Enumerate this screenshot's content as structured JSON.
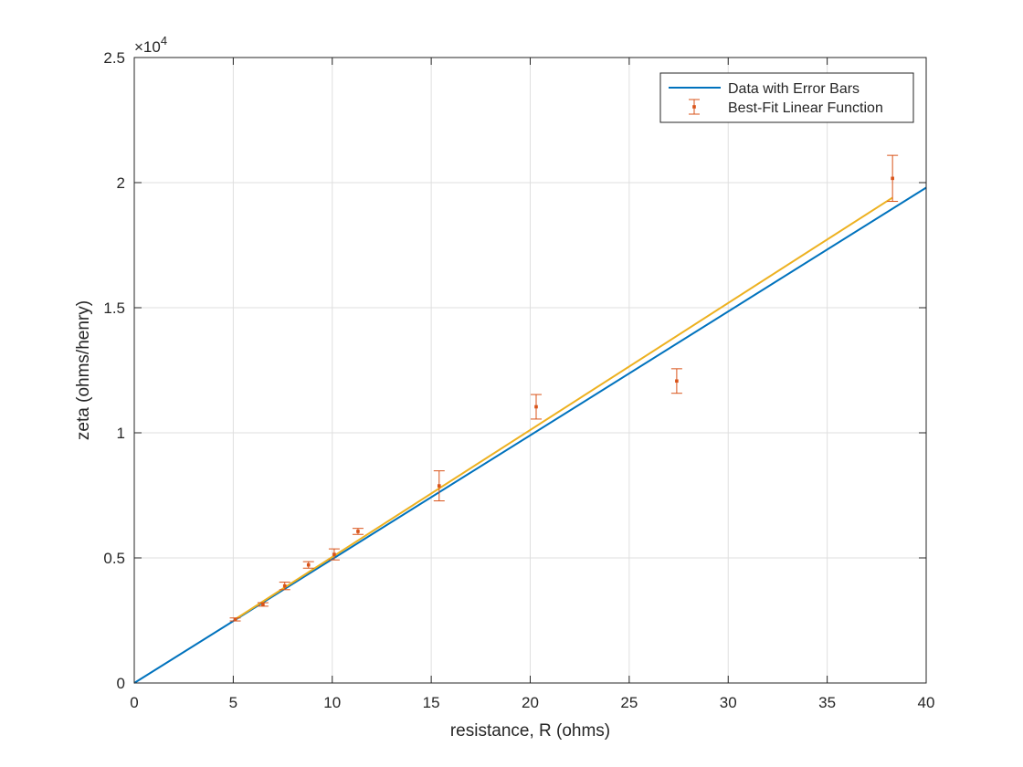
{
  "chart_data": {
    "type": "scatter",
    "title": "",
    "xlabel": "resistance, R (ohms)",
    "ylabel": "zeta (ohms/henry)",
    "xlim": [
      0,
      40
    ],
    "ylim": [
      0,
      25000
    ],
    "xticks": [
      0,
      5,
      10,
      15,
      20,
      25,
      30,
      35,
      40
    ],
    "xtick_labels": [
      "0",
      "5",
      "10",
      "15",
      "20",
      "25",
      "30",
      "35",
      "40"
    ],
    "yticks": [
      0,
      5000,
      10000,
      15000,
      20000,
      25000
    ],
    "ytick_labels": [
      "0",
      "0.5",
      "1",
      "1.5",
      "2",
      "2.5"
    ],
    "y_exponent_label": "×10",
    "y_exponent_power": "4",
    "grid": true,
    "legend_location": "top-right",
    "series": [
      {
        "name": "Data with Error Bars",
        "kind": "line",
        "color": "#0072BD",
        "x": [
          0,
          40
        ],
        "y": [
          0,
          19800
        ]
      },
      {
        "name": "Best-Fit Linear Function",
        "kind": "errorbar",
        "color": "#D95319",
        "x": [
          5.1,
          6.5,
          7.6,
          8.8,
          10.1,
          11.3,
          15.4,
          20.3,
          27.4,
          38.3
        ],
        "y": [
          2540,
          3140,
          3880,
          4720,
          5140,
          6060,
          7880,
          11040,
          12070,
          20170
        ],
        "err": [
          60,
          70,
          150,
          130,
          220,
          120,
          600,
          490,
          490,
          920
        ]
      },
      {
        "name": "",
        "kind": "line",
        "color": "#EDB120",
        "x": [
          5.1,
          38.3
        ],
        "y": [
          2550,
          19400
        ]
      }
    ]
  }
}
